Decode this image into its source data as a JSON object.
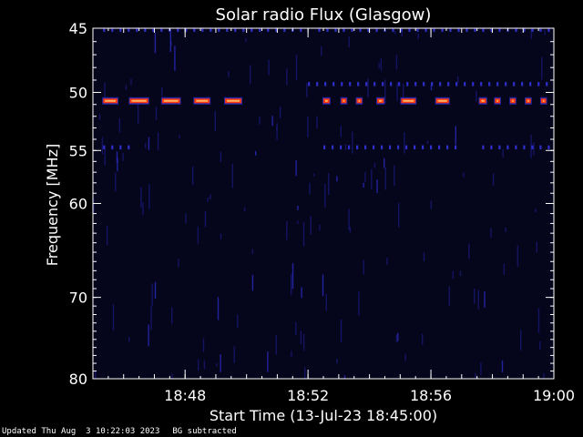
{
  "chart_data": {
    "type": "heatmap",
    "title": "Solar radio Flux (Glasgow)",
    "xlabel": "Start Time (13-Jul-23 18:45:00)",
    "ylabel": "Frequency [MHz]",
    "x_range": [
      "18:45:00",
      "19:00:00"
    ],
    "y_range": [
      45,
      80
    ],
    "y_scale": "log",
    "y_ticks": [
      45,
      50,
      55,
      60,
      70,
      80
    ],
    "x_ticks": [
      "18:48",
      "18:52",
      "18:56",
      "19:00"
    ],
    "colors": {
      "background": "#05051c",
      "faint": "#1a1a7a",
      "mid": "#2e2ec8",
      "hot": "#ff3a10",
      "core": "#ffb060"
    },
    "emission_bands": [
      {
        "freq_mhz": 50.7,
        "intensity": "high",
        "segments": [
          [
            "18:45:20",
            "18:45:48"
          ],
          [
            "18:46:12",
            "18:46:48"
          ],
          [
            "18:47:15",
            "18:47:50"
          ],
          [
            "18:48:18",
            "18:48:48"
          ],
          [
            "18:49:18",
            "18:49:50"
          ],
          [
            "18:52:30",
            "18:52:42"
          ],
          [
            "18:53:05",
            "18:53:15"
          ],
          [
            "18:53:35",
            "18:53:45"
          ],
          [
            "18:54:15",
            "18:54:28"
          ],
          [
            "18:55:02",
            "18:55:30"
          ],
          [
            "18:56:10",
            "18:56:35"
          ],
          [
            "18:57:35",
            "18:57:48"
          ],
          [
            "18:58:05",
            "18:58:15"
          ],
          [
            "18:58:35",
            "18:58:45"
          ],
          [
            "18:59:05",
            "18:59:15"
          ],
          [
            "18:59:35",
            "18:59:45"
          ]
        ]
      },
      {
        "freq_mhz": 49.3,
        "intensity": "low",
        "segments": [
          [
            "18:52:00",
            "19:00:00"
          ]
        ]
      },
      {
        "freq_mhz": 54.7,
        "intensity": "low",
        "segments": [
          [
            "18:45:20",
            "18:46:10"
          ],
          [
            "18:52:30",
            "18:56:50"
          ],
          [
            "18:57:40",
            "18:59:50"
          ]
        ]
      },
      {
        "freq_mhz": 45.1,
        "intensity": "low",
        "segments": [
          [
            "18:45:20",
            "18:52:00"
          ],
          [
            "18:52:20",
            "19:00:00"
          ]
        ]
      }
    ]
  },
  "footer": {
    "updated": "Updated Thu Aug  3 10:22:03 2023",
    "note": "BG subtracted"
  }
}
